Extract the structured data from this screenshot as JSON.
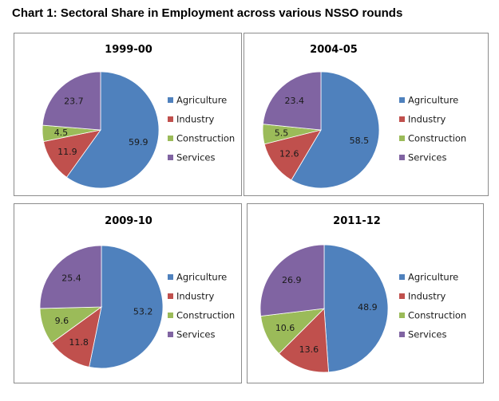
{
  "page_title": "Chart 1: Sectoral Share in Employment across various NSSO rounds",
  "colors": {
    "Agriculture": "#4f81bd",
    "Industry": "#c0504d",
    "Construction": "#9bbb59",
    "Services": "#8064a2"
  },
  "legend": [
    "Agriculture",
    "Industry",
    "Construction",
    "Services"
  ],
  "chart_data": [
    {
      "type": "pie",
      "title": "1999-00",
      "categories": [
        "Agriculture",
        "Industry",
        "Construction",
        "Services"
      ],
      "values": [
        59.9,
        11.9,
        4.5,
        23.7
      ],
      "legend_position": "right"
    },
    {
      "type": "pie",
      "title": "2004-05",
      "categories": [
        "Agriculture",
        "Industry",
        "Construction",
        "Services"
      ],
      "values": [
        58.5,
        12.6,
        5.5,
        23.4
      ],
      "legend_position": "right"
    },
    {
      "type": "pie",
      "title": "2009-10",
      "categories": [
        "Agriculture",
        "Industry",
        "Construction",
        "Services"
      ],
      "values": [
        53.2,
        11.8,
        9.6,
        25.4
      ],
      "legend_position": "right"
    },
    {
      "type": "pie",
      "title": "2011-12",
      "categories": [
        "Agriculture",
        "Industry",
        "Construction",
        "Services"
      ],
      "values": [
        48.9,
        13.6,
        10.6,
        26.9
      ],
      "legend_position": "right"
    }
  ]
}
